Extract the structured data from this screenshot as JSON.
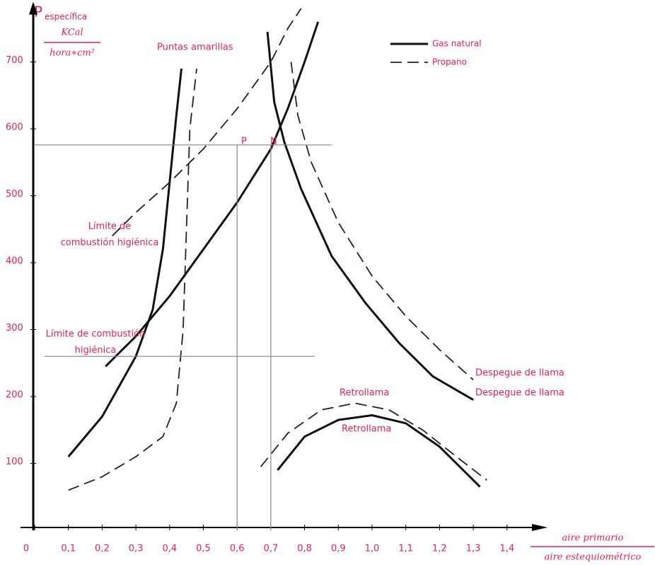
{
  "chart_data": {
    "type": "line",
    "y_label": {
      "symbol": "P",
      "subscript": "específica",
      "numerator": "KCal",
      "denominator": "hora∗cm²"
    },
    "x_label": {
      "numerator": "aire primario",
      "denominator": "aire estequiométrico"
    },
    "xlim": [
      0,
      1.52
    ],
    "ylim": [
      0,
      790
    ],
    "xticks": [
      0,
      {
        "value": 0.1,
        "label": "0,1"
      },
      {
        "value": 0.2,
        "label": "0,2"
      },
      {
        "value": 0.3,
        "label": "0,3"
      },
      {
        "value": 0.4,
        "label": "0,4"
      },
      {
        "value": 0.5,
        "label": "0,5"
      },
      {
        "value": 0.6,
        "label": "0,6"
      },
      {
        "value": 0.7,
        "label": "0,7"
      },
      {
        "value": 0.8,
        "label": "0,8"
      },
      {
        "value": 0.9,
        "label": "0,9"
      },
      {
        "value": 1.0,
        "label": "1,0"
      },
      {
        "value": 1.1,
        "label": "1,1"
      },
      {
        "value": 1.2,
        "label": "1,2"
      },
      {
        "value": 1.3,
        "label": "1,3"
      },
      {
        "value": 1.4,
        "label": "1,4"
      }
    ],
    "yticks": [
      100,
      200,
      300,
      400,
      500,
      600,
      700
    ],
    "legend": [
      {
        "label": "Gas natural",
        "style": "solid"
      },
      {
        "label": "Propano",
        "style": "dashed"
      }
    ],
    "series": [
      {
        "style": "solid",
        "x": [
          0.1,
          0.2,
          0.3,
          0.35,
          0.38,
          0.4,
          0.42,
          0.435
        ],
        "values": [
          110,
          170,
          260,
          330,
          420,
          520,
          620,
          690
        ]
      },
      {
        "style": "solid",
        "x": [
          0.21,
          0.3,
          0.4,
          0.5,
          0.6,
          0.7,
          0.75,
          0.8,
          0.84
        ],
        "values": [
          245,
          290,
          350,
          420,
          490,
          570,
          630,
          700,
          760
        ]
      },
      {
        "style": "solid",
        "x": [
          0.69,
          0.71,
          0.74,
          0.79,
          0.88,
          0.98,
          1.08,
          1.18,
          1.3
        ],
        "values": [
          745,
          640,
          580,
          510,
          410,
          340,
          280,
          230,
          195
        ]
      },
      {
        "style": "solid",
        "x": [
          0.72,
          0.8,
          0.9,
          1.0,
          1.1,
          1.2,
          1.32
        ],
        "values": [
          90,
          140,
          165,
          172,
          160,
          125,
          65
        ]
      },
      {
        "style": "dashed",
        "x": [
          0.1,
          0.2,
          0.3,
          0.38,
          0.42,
          0.44,
          0.45,
          0.46,
          0.48
        ],
        "values": [
          60,
          80,
          110,
          140,
          190,
          300,
          450,
          600,
          690
        ]
      },
      {
        "style": "dashed",
        "x": [
          0.23,
          0.3,
          0.4,
          0.5,
          0.6,
          0.7,
          0.75,
          0.79
        ],
        "values": [
          440,
          475,
          520,
          570,
          630,
          700,
          750,
          780
        ]
      },
      {
        "style": "dashed",
        "x": [
          0.76,
          0.78,
          0.82,
          0.9,
          1.0,
          1.1,
          1.2,
          1.3
        ],
        "values": [
          700,
          620,
          550,
          460,
          380,
          320,
          270,
          225
        ]
      },
      {
        "style": "dashed",
        "x": [
          0.67,
          0.75,
          0.85,
          0.95,
          1.05,
          1.15,
          1.25,
          1.34
        ],
        "values": [
          95,
          145,
          180,
          190,
          180,
          150,
          110,
          75
        ]
      },
      {
        "style": "thin",
        "x": [
          0,
          0.88
        ],
        "values": [
          576,
          576
        ]
      },
      {
        "style": "thin",
        "x": [
          0.03,
          0.83
        ],
        "values": [
          260,
          260
        ]
      },
      {
        "style": "thin",
        "x": [
          0.6,
          0.6
        ],
        "values": [
          576,
          0
        ]
      },
      {
        "style": "thin",
        "x": [
          0.7,
          0.7
        ],
        "values": [
          576,
          0
        ]
      }
    ],
    "annotations": [
      "Puntas amarillas",
      [
        "Límite de",
        "combustión higiénica"
      ],
      [
        "Límite de combustión",
        "higiénica"
      ],
      "Despegue de llama",
      "Despegue de llama",
      "Retrollama",
      "Retrollama",
      "P",
      "N"
    ]
  }
}
